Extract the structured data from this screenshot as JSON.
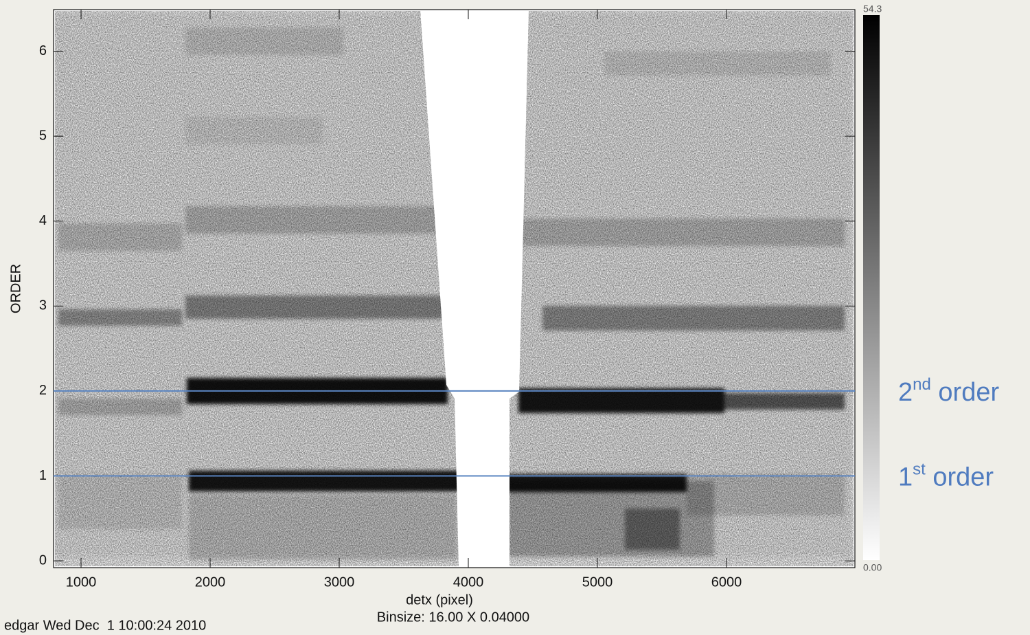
{
  "chart_data": {
    "type": "heatmap",
    "xlabel": "detx (pixel)",
    "subtitle": "Binsize: 16.00 X 0.04000",
    "ylabel": "ORDER",
    "footer": "edgar Wed Dec  1 10:00:24 2010",
    "xlim": [
      787,
      6995
    ],
    "ylim": [
      -0.08,
      6.49
    ],
    "xticks": [
      1000,
      2000,
      3000,
      4000,
      5000,
      6000
    ],
    "yticks": [
      0,
      1,
      2,
      3,
      4,
      5,
      6
    ],
    "colorbar": {
      "clim": [
        0,
        54.3
      ],
      "ticks": [
        {
          "value": 0,
          "label": "0.00"
        },
        54.3
      ]
    },
    "lines": [
      {
        "y": 2,
        "color": "#5a84c0",
        "num": "2",
        "sup": "nd",
        "text": " order"
      },
      {
        "y": 1,
        "color": "#5a84c0",
        "num": "1",
        "sup": "st",
        "text": " order"
      }
    ]
  }
}
